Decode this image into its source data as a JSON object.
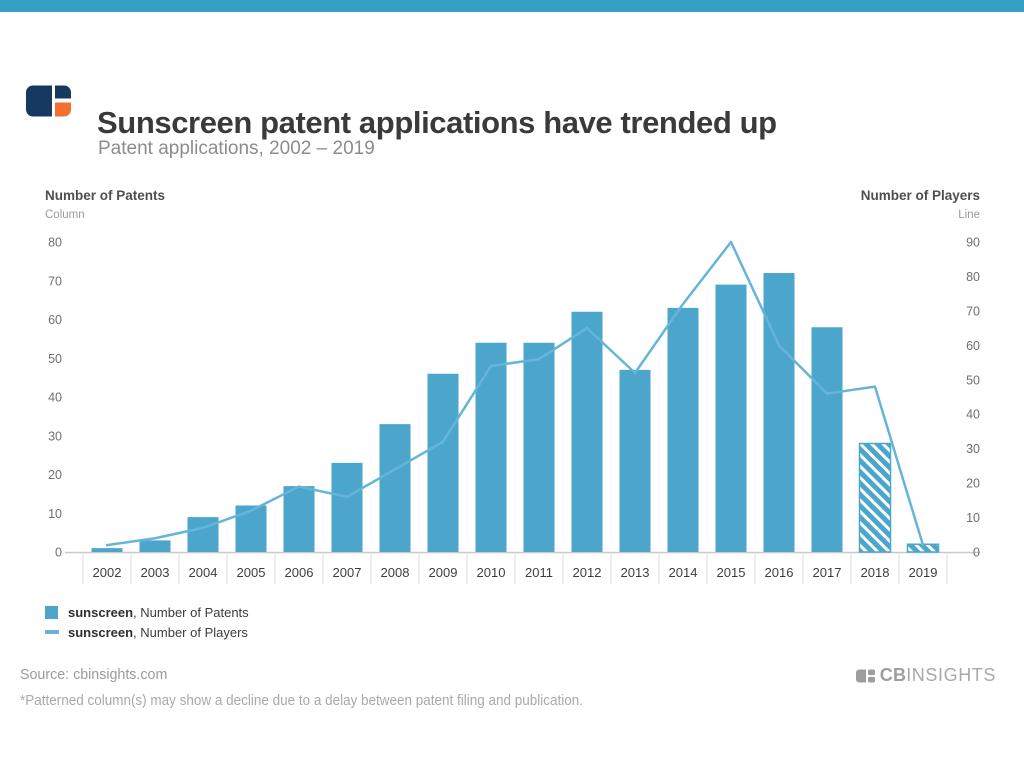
{
  "topbar": {
    "color": "#35a0c4"
  },
  "header": {
    "title": "Sunscreen patent applications have trended up",
    "subtitle": "Patent applications, 2002 – 2019",
    "logo_colors": {
      "navy": "#16395f",
      "orange": "#f26e31"
    }
  },
  "chart_data": {
    "type": "bar+line",
    "title": "Sunscreen patent applications have trended up",
    "subtitle": "Patent applications, 2002 – 2019",
    "categories": [
      "2002",
      "2003",
      "2004",
      "2005",
      "2006",
      "2007",
      "2008",
      "2009",
      "2010",
      "2011",
      "2012",
      "2013",
      "2014",
      "2015",
      "2016",
      "2017",
      "2018",
      "2019"
    ],
    "series": [
      {
        "name": "sunscreen, Number of Patents",
        "type": "bar",
        "axis": "left",
        "color": "#4ca6cb",
        "values": [
          1,
          3,
          9,
          12,
          17,
          23,
          33,
          46,
          54,
          54,
          62,
          47,
          63,
          69,
          72,
          58,
          28,
          2
        ],
        "patterned_categories": [
          "2018",
          "2019"
        ]
      },
      {
        "name": "sunscreen, Number of Players",
        "type": "line",
        "axis": "right",
        "color": "#66b5d8",
        "values": [
          2,
          4,
          7,
          12,
          19,
          16,
          24,
          32,
          54,
          56,
          65,
          52,
          72,
          90,
          60,
          46,
          48,
          2
        ]
      }
    ],
    "left_axis": {
      "title": "Number of Patents",
      "type_label": "Column",
      "ticks": [
        0,
        10,
        20,
        30,
        40,
        50,
        60,
        70,
        80
      ],
      "min": 0,
      "max": 80
    },
    "right_axis": {
      "title": "Number of Players",
      "type_label": "Line",
      "ticks": [
        0,
        10,
        20,
        30,
        40,
        50,
        60,
        70,
        80,
        90
      ],
      "min": 0,
      "max": 90
    },
    "grid": false,
    "legend_position": "bottom-left"
  },
  "legend": {
    "items": [
      {
        "swatch": "square",
        "term": "sunscreen",
        "rest": ", Number of Patents"
      },
      {
        "swatch": "line",
        "term": "sunscreen",
        "rest": ", Number of Players"
      }
    ]
  },
  "footer": {
    "source": "Source: cbinsights.com",
    "footnote": "*Patterned column(s) may show a decline due to a delay between patent filing and publication.",
    "brand_cb": "CB",
    "brand_insights": "INSIGHTS",
    "brand_color": "#9e9e9e"
  }
}
